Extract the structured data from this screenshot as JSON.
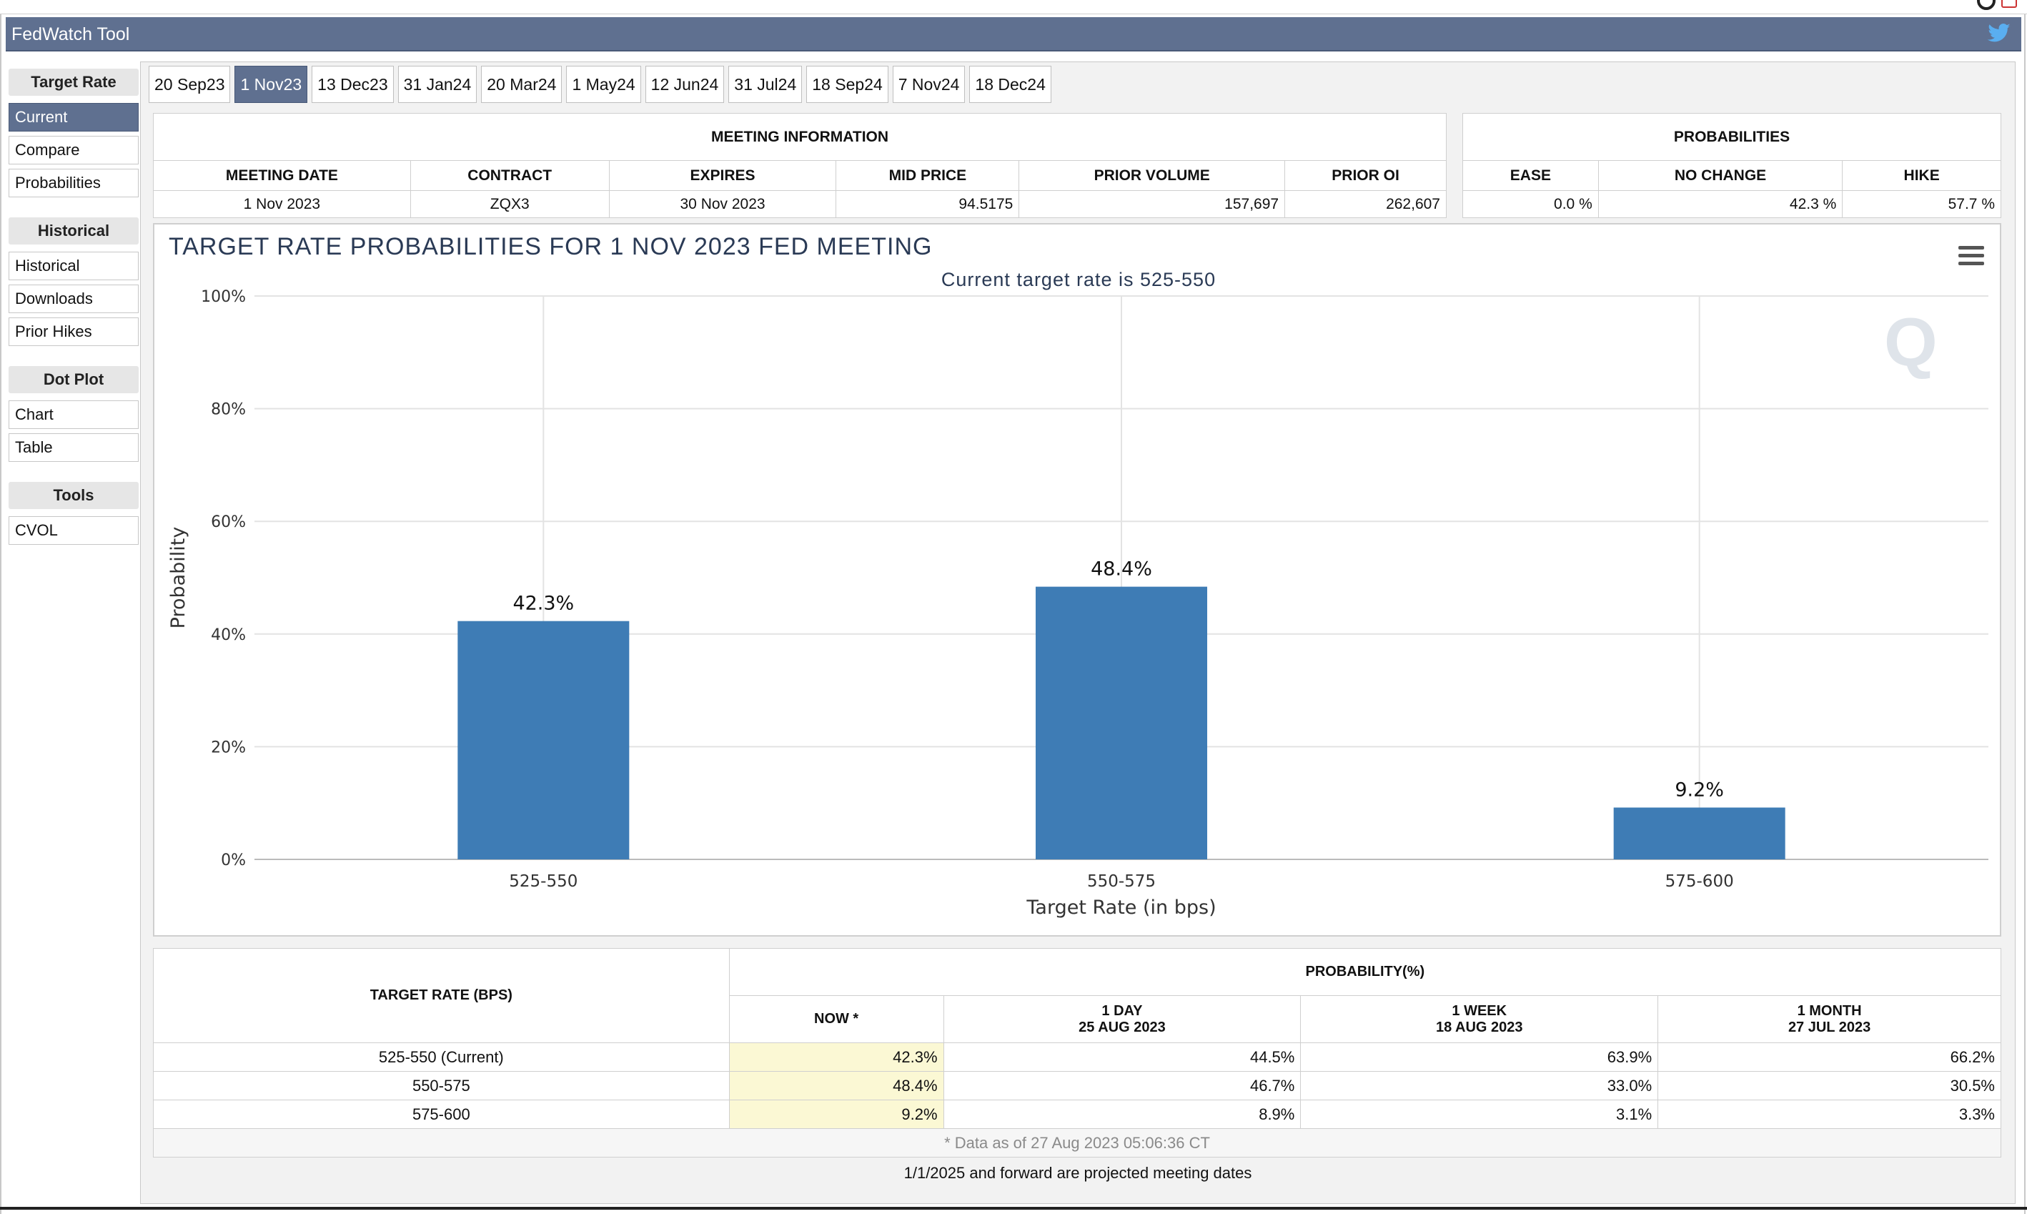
{
  "app": {
    "title": "FedWatch Tool"
  },
  "sidebar": {
    "sections": [
      {
        "heading": "Target Rate",
        "items": [
          "Current",
          "Compare",
          "Probabilities"
        ]
      },
      {
        "heading": "Historical",
        "items": [
          "Historical",
          "Downloads",
          "Prior Hikes"
        ]
      },
      {
        "heading": "Dot Plot",
        "items": [
          "Chart",
          "Table"
        ]
      },
      {
        "heading": "Tools",
        "items": [
          "CVOL"
        ]
      }
    ],
    "active": "Current"
  },
  "tabs": [
    "20 Sep23",
    "1 Nov23",
    "13 Dec23",
    "31 Jan24",
    "20 Mar24",
    "1 May24",
    "12 Jun24",
    "31 Jul24",
    "18 Sep24",
    "7 Nov24",
    "18 Dec24"
  ],
  "active_tab": "1 Nov23",
  "meeting_info": {
    "caption": "MEETING INFORMATION",
    "headers": [
      "MEETING DATE",
      "CONTRACT",
      "EXPIRES",
      "MID PRICE",
      "PRIOR VOLUME",
      "PRIOR OI"
    ],
    "values": [
      "1 Nov 2023",
      "ZQX3",
      "30 Nov 2023",
      "94.5175",
      "157,697",
      "262,607"
    ]
  },
  "probabilities_box": {
    "caption": "PROBABILITIES",
    "headers": [
      "EASE",
      "NO CHANGE",
      "HIKE"
    ],
    "values": [
      "0.0 %",
      "42.3 %",
      "57.7 %"
    ]
  },
  "chart_data": {
    "type": "bar",
    "title": "TARGET RATE PROBABILITIES FOR 1 NOV 2023 FED MEETING",
    "subtitle": "Current target rate is 525-550",
    "xlabel": "Target Rate (in bps)",
    "ylabel": "Probability",
    "categories": [
      "525-550",
      "550-575",
      "575-600"
    ],
    "values": [
      42.3,
      48.4,
      9.2
    ],
    "data_labels": [
      "42.3%",
      "48.4%",
      "9.2%"
    ],
    "ylim": [
      0,
      100
    ],
    "y_ticks": [
      "0%",
      "20%",
      "40%",
      "60%",
      "80%",
      "100%"
    ],
    "grid": true,
    "bar_color": "#3e7cb5"
  },
  "prob_table": {
    "row_header": "TARGET RATE (BPS)",
    "group_header": "PROBABILITY(%)",
    "columns": [
      {
        "label": "NOW *",
        "sub": ""
      },
      {
        "label": "1 DAY",
        "sub": "25 AUG 2023"
      },
      {
        "label": "1 WEEK",
        "sub": "18 AUG 2023"
      },
      {
        "label": "1 MONTH",
        "sub": "27 JUL 2023"
      }
    ],
    "rows": [
      {
        "rate": "525-550 (Current)",
        "values": [
          "42.3%",
          "44.5%",
          "63.9%",
          "66.2%"
        ]
      },
      {
        "rate": "550-575",
        "values": [
          "48.4%",
          "46.7%",
          "33.0%",
          "30.5%"
        ]
      },
      {
        "rate": "575-600",
        "values": [
          "9.2%",
          "8.9%",
          "3.1%",
          "3.3%"
        ]
      }
    ],
    "note": "* Data as of 27 Aug 2023 05:06:36 CT"
  },
  "footer_note": "1/1/2025 and forward are projected meeting dates",
  "icons": [
    "twitter-icon",
    "menu-icon"
  ]
}
